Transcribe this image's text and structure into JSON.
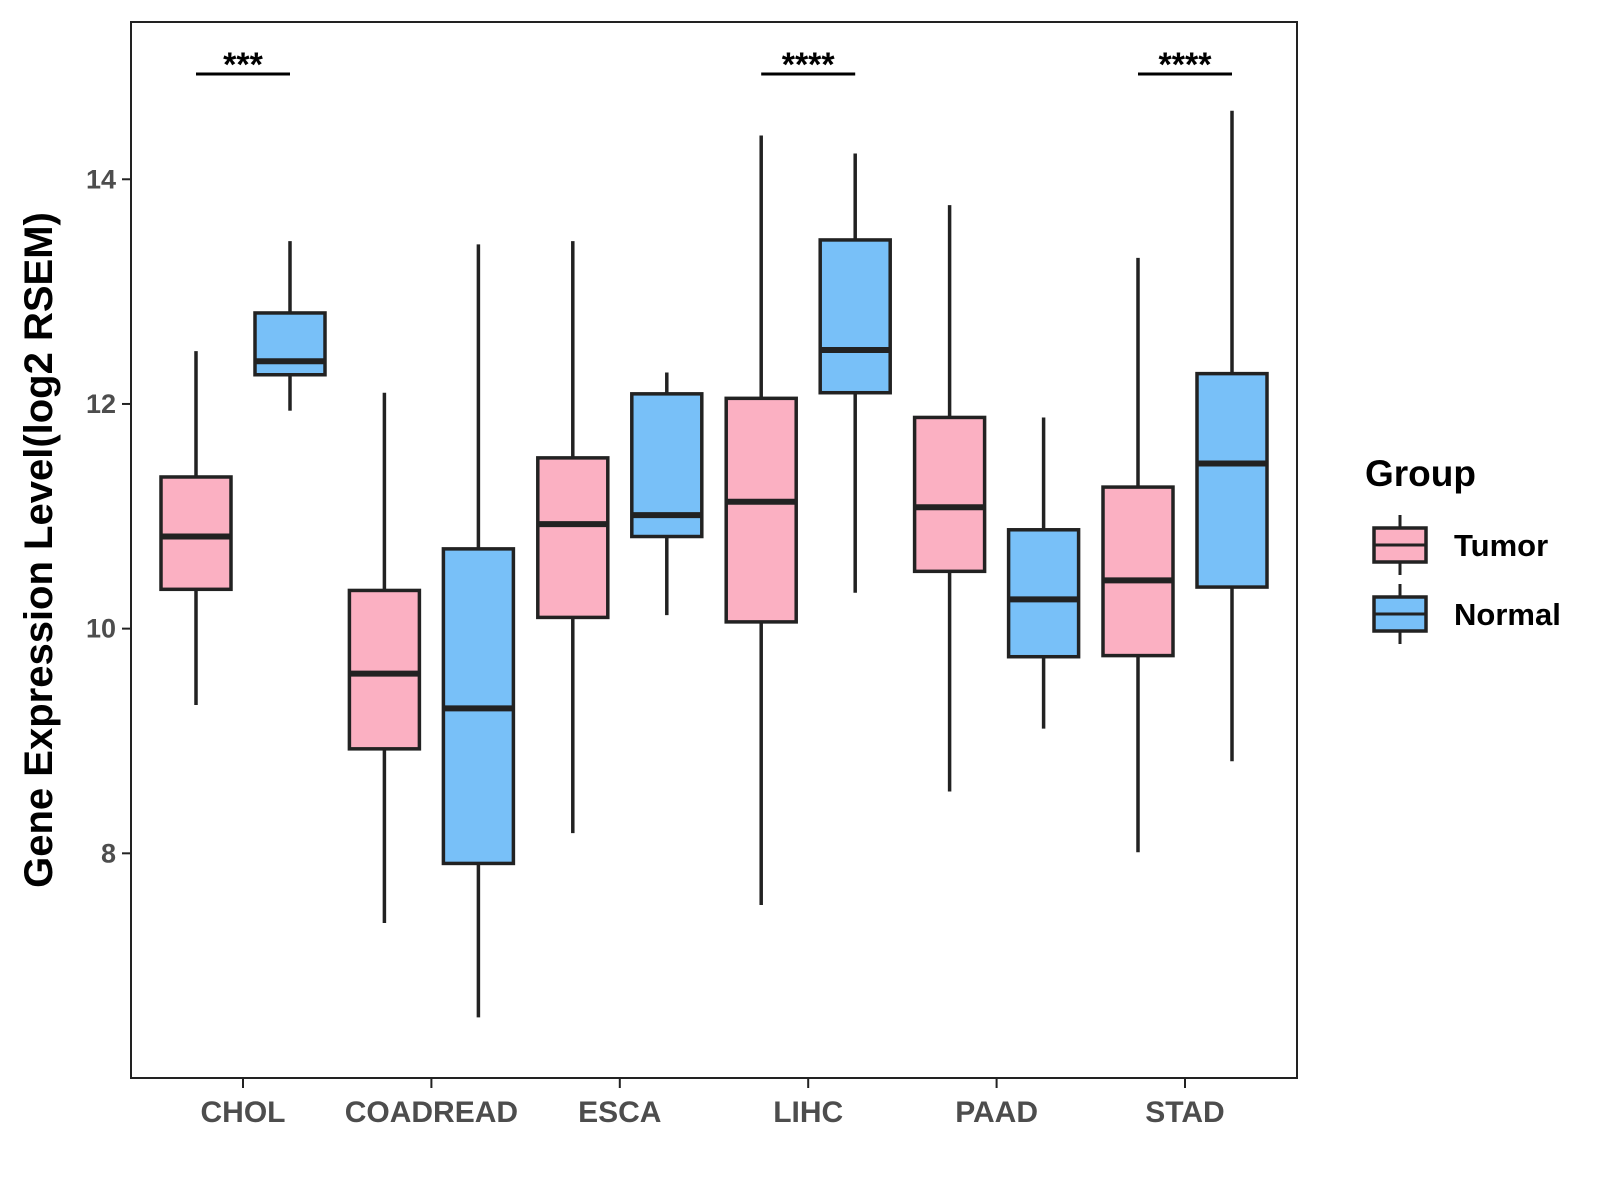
{
  "chart_data": {
    "type": "boxplot",
    "title": "",
    "xlabel": "",
    "ylabel": "Gene Expression Level(log2 RSEM)",
    "ylim": [
      6.0,
      15.4
    ],
    "yticks": [
      8,
      10,
      12,
      14
    ],
    "categories": [
      "CHOL",
      "COADREAD",
      "ESCA",
      "LIHC",
      "PAAD",
      "STAD"
    ],
    "legend": {
      "title": "Group",
      "position": "right",
      "entries": [
        "Tumor",
        "Normal"
      ]
    },
    "colors": {
      "Tumor": "#fbb0c2",
      "Normal": "#78c0f8",
      "outline": "#222222"
    },
    "series": [
      {
        "name": "Tumor",
        "boxes": [
          {
            "category": "CHOL",
            "min": 9.32,
            "q1": 10.35,
            "median": 10.82,
            "q3": 11.35,
            "max": 12.47
          },
          {
            "category": "COADREAD",
            "min": 7.38,
            "q1": 8.93,
            "median": 9.6,
            "q3": 10.34,
            "max": 12.1
          },
          {
            "category": "ESCA",
            "min": 8.18,
            "q1": 10.1,
            "median": 10.93,
            "q3": 11.52,
            "max": 13.45
          },
          {
            "category": "LIHC",
            "min": 7.54,
            "q1": 10.06,
            "median": 11.13,
            "q3": 12.05,
            "max": 14.39
          },
          {
            "category": "PAAD",
            "min": 8.55,
            "q1": 10.51,
            "median": 11.08,
            "q3": 11.88,
            "max": 13.77
          },
          {
            "category": "STAD",
            "min": 8.01,
            "q1": 9.76,
            "median": 10.43,
            "q3": 11.26,
            "max": 13.3
          }
        ]
      },
      {
        "name": "Normal",
        "boxes": [
          {
            "category": "CHOL",
            "min": 11.94,
            "q1": 12.26,
            "median": 12.38,
            "q3": 12.81,
            "max": 13.45
          },
          {
            "category": "COADREAD",
            "min": 6.54,
            "q1": 7.91,
            "median": 9.29,
            "q3": 10.71,
            "max": 13.42
          },
          {
            "category": "ESCA",
            "min": 10.12,
            "q1": 10.82,
            "median": 11.01,
            "q3": 12.09,
            "max": 12.28
          },
          {
            "category": "LIHC",
            "min": 10.32,
            "q1": 12.1,
            "median": 12.48,
            "q3": 13.46,
            "max": 14.23
          },
          {
            "category": "PAAD",
            "min": 9.11,
            "q1": 9.75,
            "median": 10.26,
            "q3": 10.88,
            "max": 11.88
          },
          {
            "category": "STAD",
            "min": 8.82,
            "q1": 10.37,
            "median": 11.47,
            "q3": 12.27,
            "max": 14.61
          }
        ]
      }
    ],
    "significance": [
      {
        "category": "CHOL",
        "label": "***"
      },
      {
        "category": "LIHC",
        "label": "****"
      },
      {
        "category": "STAD",
        "label": "****"
      }
    ]
  }
}
